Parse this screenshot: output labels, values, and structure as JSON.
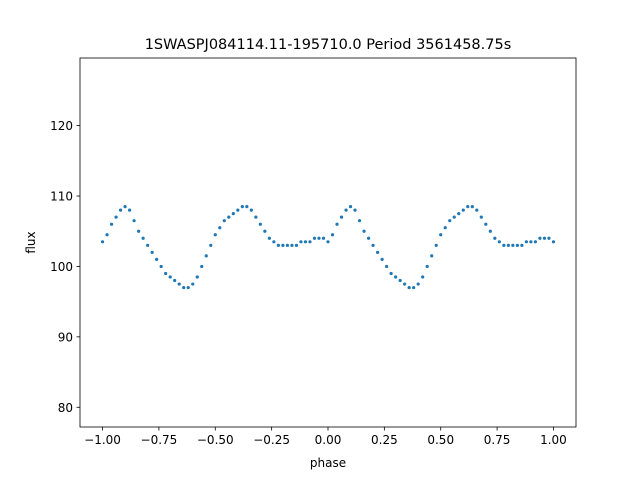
{
  "chart_data": {
    "type": "scatter",
    "title": "1SWASPJ084114.11-195710.0 Period 3561458.75s",
    "xlabel": "phase",
    "ylabel": "flux",
    "xlim": [
      -1.1,
      1.1
    ],
    "ylim": [
      77.2,
      129.6
    ],
    "x_ticks": [
      -1.0,
      -0.75,
      -0.5,
      -0.25,
      0.0,
      0.25,
      0.5,
      0.75,
      1.0
    ],
    "x_tick_labels": [
      "−1.00",
      "−0.75",
      "−0.50",
      "−0.25",
      "0.00",
      "0.25",
      "0.50",
      "0.75",
      "1.00"
    ],
    "y_ticks": [
      80,
      90,
      100,
      110,
      120
    ],
    "y_tick_labels": [
      "80",
      "90",
      "100",
      "110",
      "120"
    ],
    "grid": false,
    "legend": "none",
    "marker_color": "#1f77b4",
    "series": [
      {
        "x": [
          -1.0,
          -0.98,
          -0.96,
          -0.94,
          -0.92,
          -0.9,
          -0.88,
          -0.86,
          -0.84,
          -0.82,
          -0.8,
          -0.78,
          -0.76,
          -0.74,
          -0.72,
          -0.7,
          -0.68,
          -0.66,
          -0.64,
          -0.62,
          -0.6,
          -0.58,
          -0.56,
          -0.54,
          -0.52,
          -0.5,
          -0.48,
          -0.46,
          -0.44,
          -0.42,
          -0.4,
          -0.38,
          -0.36,
          -0.34,
          -0.32,
          -0.3,
          -0.28,
          -0.26,
          -0.24,
          -0.22,
          -0.2,
          -0.18,
          -0.16,
          -0.14,
          -0.12,
          -0.1,
          -0.08,
          -0.06,
          -0.04,
          -0.02,
          0.0,
          0.02,
          0.04,
          0.06,
          0.08,
          0.1,
          0.12,
          0.14,
          0.16,
          0.18,
          0.2,
          0.22,
          0.24,
          0.26,
          0.28,
          0.3,
          0.32,
          0.34,
          0.36,
          0.38,
          0.4,
          0.42,
          0.44,
          0.46,
          0.48,
          0.5,
          0.52,
          0.54,
          0.56,
          0.58,
          0.6,
          0.62,
          0.64,
          0.66,
          0.68,
          0.7,
          0.72,
          0.74,
          0.76,
          0.78,
          0.8,
          0.82,
          0.84,
          0.86,
          0.88,
          0.9,
          0.92,
          0.94,
          0.96,
          0.98,
          1.0
        ],
        "y": [
          103.5,
          104.5,
          106.0,
          107.0,
          108.0,
          108.5,
          108.0,
          106.5,
          105.0,
          104.0,
          103.0,
          102.0,
          101.0,
          100.0,
          99.0,
          98.5,
          98.0,
          97.5,
          97.0,
          97.0,
          97.5,
          98.5,
          100.0,
          101.5,
          103.0,
          104.5,
          105.5,
          106.5,
          107.0,
          107.5,
          108.0,
          108.5,
          108.5,
          108.0,
          107.0,
          106.0,
          105.0,
          104.0,
          103.5,
          103.0,
          103.0,
          103.0,
          103.0,
          103.0,
          103.5,
          103.5,
          103.5,
          104.0,
          104.0,
          104.0,
          103.5,
          104.5,
          106.0,
          107.0,
          108.0,
          108.5,
          108.0,
          106.5,
          105.0,
          104.0,
          103.0,
          102.0,
          101.0,
          100.0,
          99.0,
          98.5,
          98.0,
          97.5,
          97.0,
          97.0,
          97.5,
          98.5,
          100.0,
          101.5,
          103.0,
          104.5,
          105.5,
          106.5,
          107.0,
          107.5,
          108.0,
          108.5,
          108.5,
          108.0,
          107.0,
          106.0,
          105.0,
          104.0,
          103.5,
          103.0,
          103.0,
          103.0,
          103.0,
          103.0,
          103.5,
          103.5,
          103.5,
          104.0,
          104.0,
          104.0,
          103.5
        ]
      }
    ]
  }
}
